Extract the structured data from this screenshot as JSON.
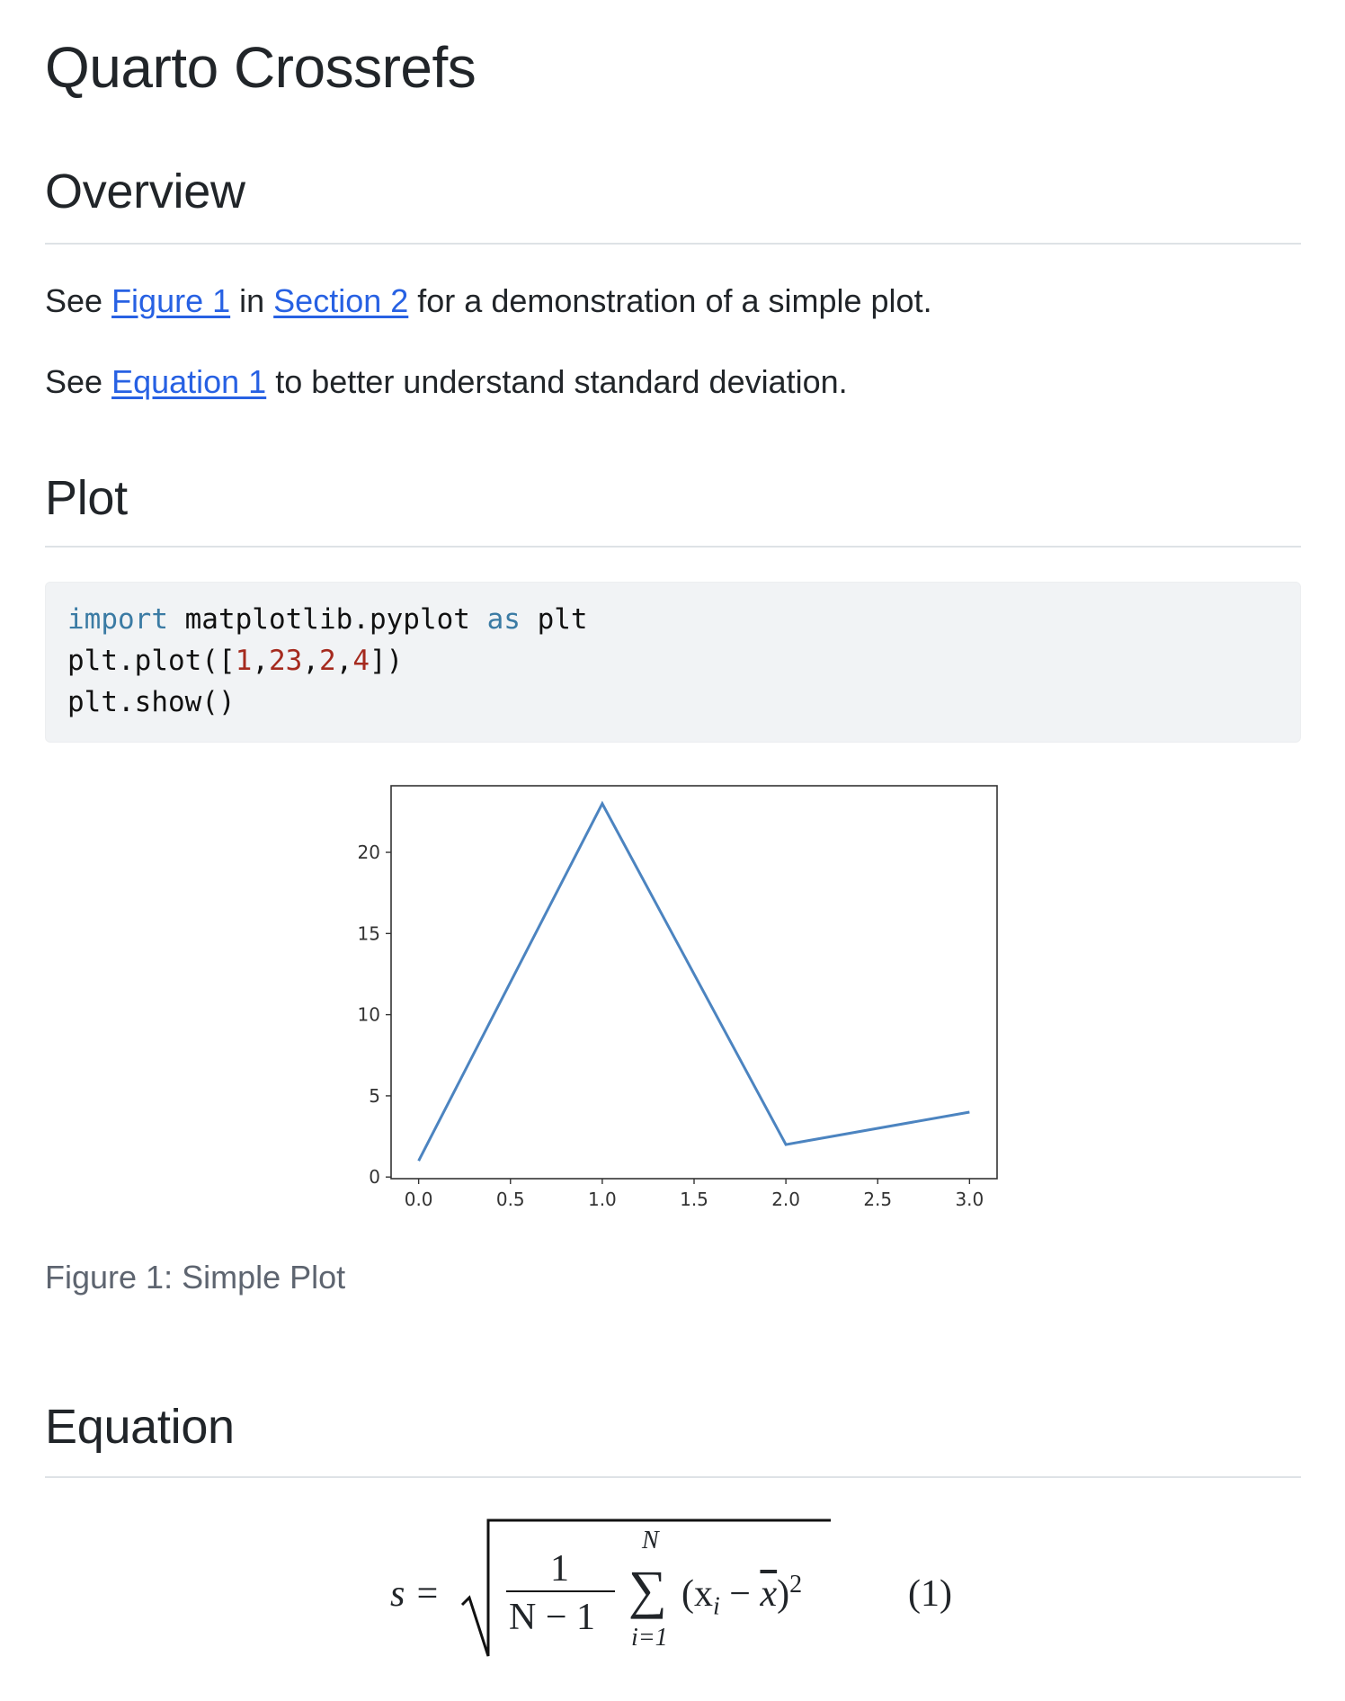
{
  "title": "Quarto Crossrefs",
  "sections": {
    "overview": {
      "heading": "Overview",
      "p1": {
        "pre": "See ",
        "link1": "Figure 1",
        "mid": " in ",
        "link2": "Section 2",
        "post": " for a demonstration of a simple plot."
      },
      "p2": {
        "pre": "See ",
        "link": "Equation 1",
        "post": " to better understand standard deviation."
      }
    },
    "plot": {
      "heading": "Plot",
      "code": {
        "line1": {
          "kw1": "import",
          "t1": " matplotlib.pyplot ",
          "kw2": "as",
          "t2": " plt"
        },
        "line2": {
          "t1": "plt.plot([",
          "n1": "1",
          "c1": ",",
          "n2": "23",
          "c2": ",",
          "n3": "2",
          "c3": ",",
          "n4": "4",
          "t2": "])"
        },
        "line3": "plt.show()"
      },
      "caption": "Figure 1: Simple Plot"
    },
    "equation": {
      "heading": "Equation",
      "lhs": "s =",
      "numerator": "1",
      "denominator": "N − 1",
      "sum_symbol": "∑",
      "sum_upper": "N",
      "sum_lower": "i=1",
      "term_open": "(x",
      "term_sub": "i",
      "term_minus": " − ",
      "term_xbar": "x",
      "term_close": ")",
      "term_exp": "2",
      "number": "(1)"
    }
  },
  "colors": {
    "link": "#2761e3",
    "keyword": "#3b7ba4",
    "number": "#a52a1e",
    "line": "#4c84c0"
  },
  "chart_data": {
    "type": "line",
    "x": [
      0,
      1,
      2,
      3
    ],
    "series": [
      {
        "values": [
          1,
          23,
          2,
          4
        ]
      }
    ],
    "xlim": [
      -0.15,
      3.15
    ],
    "ylim": [
      -0.1,
      24.1
    ],
    "xticks": [
      "0.0",
      "0.5",
      "1.0",
      "1.5",
      "2.0",
      "2.5",
      "3.0"
    ],
    "yticks": [
      "0",
      "5",
      "10",
      "15",
      "20"
    ],
    "title": "",
    "xlabel": "",
    "ylabel": "",
    "grid": false
  }
}
